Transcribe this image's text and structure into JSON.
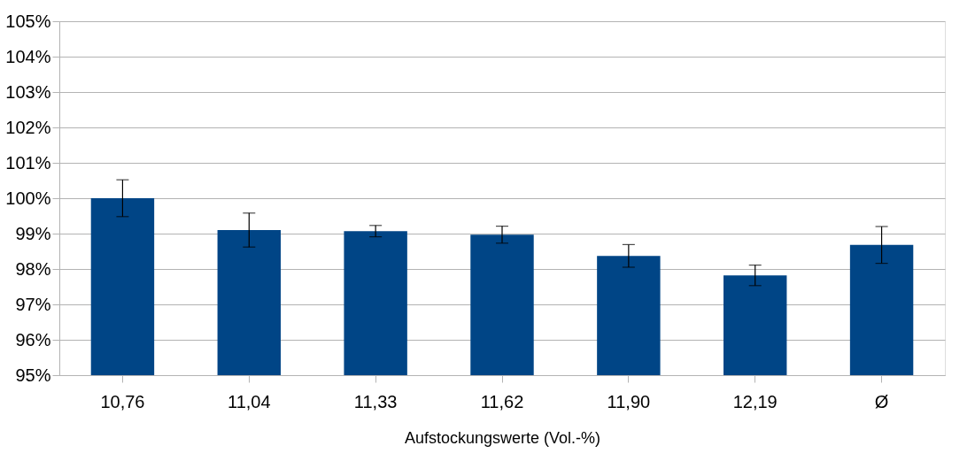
{
  "chart_data": {
    "type": "bar",
    "xlabel": "Aufstockungswerte (Vol.-%)",
    "categories": [
      "10,76",
      "11,04",
      "11,33",
      "11,62",
      "11,90",
      "12,19",
      "Ø"
    ],
    "values": [
      100.0,
      99.1,
      99.07,
      98.97,
      98.37,
      97.82,
      98.68
    ],
    "errors": [
      0.52,
      0.48,
      0.16,
      0.24,
      0.32,
      0.29,
      0.52
    ],
    "color": "#004586",
    "ylim": [
      95,
      105
    ],
    "yticks": [
      {
        "value": 95,
        "label": "95%"
      },
      {
        "value": 96,
        "label": "96%"
      },
      {
        "value": 97,
        "label": "97%"
      },
      {
        "value": 98,
        "label": "98%"
      },
      {
        "value": 99,
        "label": "99%"
      },
      {
        "value": 100,
        "label": "100%"
      },
      {
        "value": 101,
        "label": "101%"
      },
      {
        "value": 102,
        "label": "102%"
      },
      {
        "value": 103,
        "label": "103%"
      },
      {
        "value": 104,
        "label": "104%"
      },
      {
        "value": 105,
        "label": "105%"
      }
    ],
    "grid": "y"
  }
}
